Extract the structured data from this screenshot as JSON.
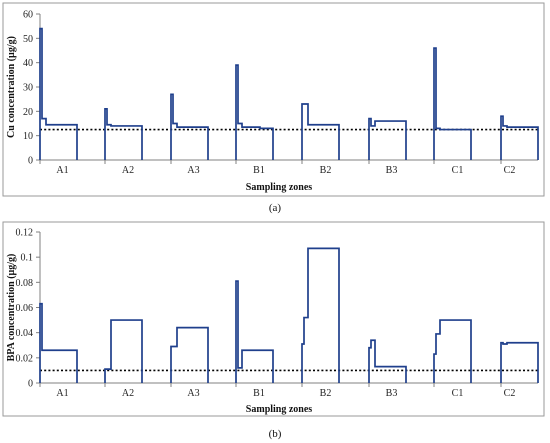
{
  "chart_data": [
    {
      "type": "step",
      "caption": "(a)",
      "xlabel": "Sampling zones",
      "ylabel": "Cu concentration (µg/g)",
      "ylim": [
        0,
        60
      ],
      "yticks": [
        "0",
        "10",
        "20",
        "30",
        "40",
        "50",
        "60"
      ],
      "ytick_values": [
        0,
        10,
        20,
        30,
        40,
        50,
        60
      ],
      "categories": [
        "A1",
        "A2",
        "A3",
        "B1",
        "B2",
        "B3",
        "C1",
        "C2"
      ],
      "reference_line": 12.5,
      "series": [
        {
          "values": [
            [
              54,
              17,
              14.5,
              14.5
            ],
            [
              21,
              14.5,
              14,
              14
            ],
            [
              27,
              15,
              13.5,
              13.5
            ],
            [
              39,
              15,
              13.5,
              13
            ],
            [
              23,
              23,
              14.5,
              14.5
            ],
            [
              17,
              14,
              16,
              16
            ],
            [
              46,
              13,
              12.5,
              12.5
            ],
            [
              18,
              14,
              13.5,
              13.5
            ]
          ]
        }
      ],
      "grid": false,
      "line_color": "#1f3f8c"
    },
    {
      "type": "step",
      "caption": "(b)",
      "xlabel": "Sampling zones",
      "ylabel": "BPA concentration (µg/g)",
      "ylim": [
        0,
        0.12
      ],
      "yticks": [
        "0",
        "0.02",
        "0.04",
        "0.06",
        "0.08",
        "0.1",
        "0.12"
      ],
      "ytick_values": [
        0,
        0.02,
        0.04,
        0.06,
        0.08,
        0.1,
        0.12
      ],
      "categories": [
        "A1",
        "A2",
        "A3",
        "B1",
        "B2",
        "B3",
        "C1",
        "C2"
      ],
      "reference_line": 0.01,
      "series": [
        {
          "values": [
            [
              0.063,
              0.026,
              0.026,
              0.026
            ],
            [
              0.011,
              0.011,
              0.05,
              0.05
            ],
            [
              0.029,
              0.029,
              0.044,
              0.044
            ],
            [
              0.081,
              0.012,
              0.026,
              0.026
            ],
            [
              0.031,
              0.052,
              0.107,
              0.107
            ],
            [
              0.028,
              0.034,
              0.013,
              0.013
            ],
            [
              0.023,
              0.039,
              0.05,
              0.05
            ],
            [
              0.032,
              0.031,
              0.032,
              0.032
            ]
          ]
        }
      ],
      "grid": false,
      "line_color": "#1f3f8c"
    }
  ]
}
